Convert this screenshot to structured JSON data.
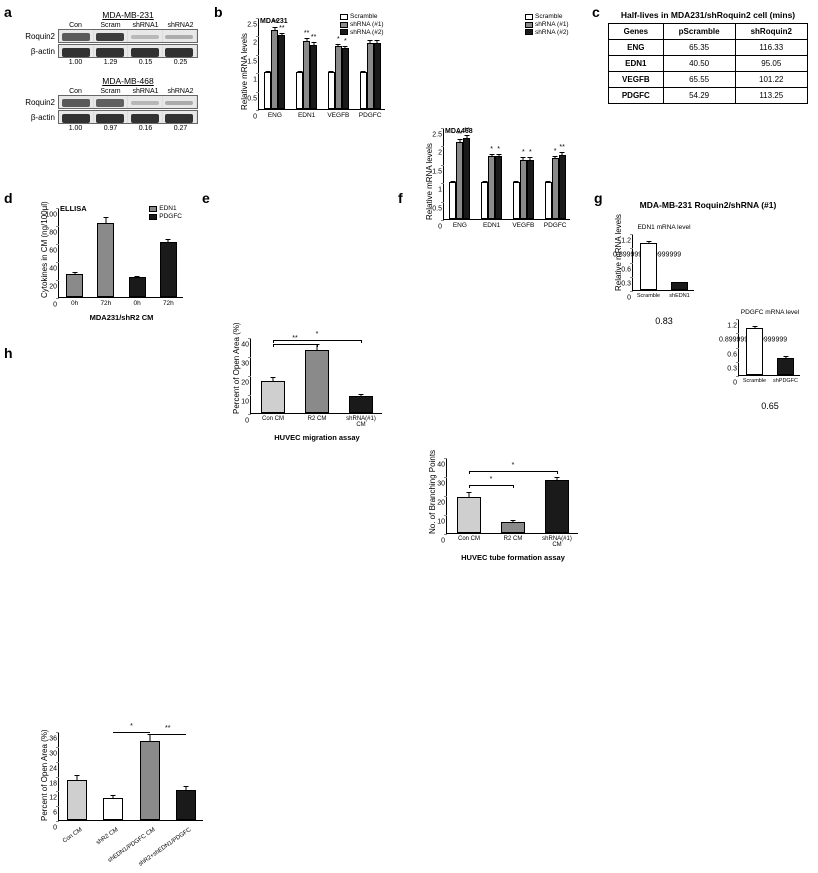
{
  "panel_a": {
    "label": "a",
    "sets": [
      {
        "title": "MDA-MB-231",
        "lanes": [
          "Con",
          "Scram",
          "shRNA1",
          "shRNA2"
        ],
        "rows": [
          {
            "name": "Roquin2",
            "intensities": [
              0.55,
              0.7,
              0.08,
              0.14
            ]
          },
          {
            "name": "β-actin",
            "intensities": [
              0.75,
              0.75,
              0.75,
              0.75
            ]
          }
        ],
        "quant": [
          "1.00",
          "1.29",
          "0.15",
          "0.25"
        ]
      },
      {
        "title": "MDA-MB-468",
        "lanes": [
          "Con",
          "Scram",
          "shRNA1",
          "shRNA2"
        ],
        "rows": [
          {
            "name": "Roquin2",
            "intensities": [
              0.55,
              0.53,
              0.09,
              0.15
            ]
          },
          {
            "name": "β-actin",
            "intensities": [
              0.75,
              0.75,
              0.75,
              0.75
            ]
          }
        ],
        "quant": [
          "1.00",
          "0.97",
          "0.16",
          "0.27"
        ]
      }
    ]
  },
  "panel_b": {
    "label": "b",
    "ylabel": "Relative mRNA levels",
    "ylim": [
      0,
      2.5
    ],
    "ytick_step": 0.5,
    "legend": [
      {
        "label": "Scramble",
        "color": "#ffffff"
      },
      {
        "label": "shRNA (#1)",
        "color": "#8a8a8a"
      },
      {
        "label": "shRNA (#2)",
        "color": "#1a1a1a"
      }
    ],
    "charts": [
      {
        "title": "MDA231",
        "groups": [
          "ENG",
          "EDN1",
          "VEGFB",
          "PDGFC"
        ],
        "series": [
          {
            "color": "#ffffff",
            "values": [
              1.0,
              1.0,
              1.0,
              1.0
            ],
            "errs": [
              0.05,
              0.05,
              0.05,
              0.05
            ]
          },
          {
            "color": "#8a8a8a",
            "values": [
              2.15,
              1.85,
              1.7,
              1.8
            ],
            "errs": [
              0.1,
              0.1,
              0.1,
              0.1
            ],
            "sigs": [
              "**",
              "**",
              "*",
              "**"
            ]
          },
          {
            "color": "#1a1a1a",
            "values": [
              2.0,
              1.75,
              1.65,
              1.8
            ],
            "errs": [
              0.1,
              0.1,
              0.1,
              0.1
            ],
            "sigs": [
              "**",
              "**",
              "*",
              "**"
            ]
          }
        ]
      },
      {
        "title": "MDA468",
        "groups": [
          "ENG",
          "EDN1",
          "VEGFB",
          "PDGFC"
        ],
        "series": [
          {
            "color": "#ffffff",
            "values": [
              1.0,
              1.0,
              1.0,
              1.0
            ],
            "errs": [
              0.05,
              0.05,
              0.05,
              0.05
            ]
          },
          {
            "color": "#8a8a8a",
            "values": [
              2.1,
              1.7,
              1.6,
              1.65
            ],
            "errs": [
              0.1,
              0.1,
              0.1,
              0.1
            ],
            "sigs": [
              "**",
              "*",
              "*",
              "*"
            ]
          },
          {
            "color": "#1a1a1a",
            "values": [
              2.2,
              1.7,
              1.6,
              1.75
            ],
            "errs": [
              0.1,
              0.1,
              0.1,
              0.1
            ],
            "sigs": [
              "**",
              "*",
              "*",
              "**"
            ]
          }
        ]
      }
    ]
  },
  "panel_c": {
    "label": "c",
    "title": "Half-lives in MDA231/shRoquin2 cell (mins)",
    "columns": [
      "Genes",
      "pScramble",
      "shRoquin2"
    ],
    "rows": [
      [
        "ENG",
        "65.35",
        "116.33"
      ],
      [
        "EDN1",
        "40.50",
        "95.05"
      ],
      [
        "VEGFB",
        "65.55",
        "101.22"
      ],
      [
        "PDGFC",
        "54.29",
        "113.25"
      ]
    ]
  },
  "panel_d": {
    "label": "d",
    "title": "ELLISA",
    "ylabel": "Cytokines in CM (ng/100μl)",
    "xlabel": "MDA231/shR2 CM",
    "ylim": [
      0,
      100
    ],
    "ytick_step": 20,
    "legend": [
      {
        "label": "EDN1",
        "color": "#8a8a8a"
      },
      {
        "label": "PDGFC",
        "color": "#1a1a1a"
      }
    ],
    "groups": [
      "0h",
      "72h",
      "0h",
      "72h"
    ],
    "bars": [
      {
        "color": "#8a8a8a",
        "x": 0,
        "val": 26,
        "err": 3
      },
      {
        "color": "#8a8a8a",
        "x": 1,
        "val": 82,
        "err": 8
      },
      {
        "color": "#1a1a1a",
        "x": 2,
        "val": 22,
        "err": 3
      },
      {
        "color": "#1a1a1a",
        "x": 3,
        "val": 61,
        "err": 5
      }
    ]
  },
  "panel_e": {
    "label": "e",
    "ylabel": "Percent of Open Area (%)",
    "xlabel": "HUVEC migration assay",
    "ylim": [
      0,
      40
    ],
    "ytick_step": 10,
    "groups": [
      "Con CM",
      "R2 CM",
      "shRNA(#1) CM"
    ],
    "bars": [
      {
        "color": "#cfcfcf",
        "val": 17,
        "err": 2.5
      },
      {
        "color": "#8a8a8a",
        "val": 33,
        "err": 4
      },
      {
        "color": "#1a1a1a",
        "val": 9,
        "err": 1.5
      }
    ],
    "sigs": [
      {
        "from": 0,
        "to": 2,
        "label": "*",
        "y": 39
      },
      {
        "from": 0,
        "to": 1,
        "label": "**",
        "y": 37
      }
    ]
  },
  "panel_f": {
    "label": "f",
    "ylabel": "No. of Branching Points",
    "xlabel": "HUVEC tube formation assay",
    "ylim": [
      0,
      40
    ],
    "ytick_step": 10,
    "groups": [
      "Con CM",
      "R2 CM",
      "shRNA(#1) CM"
    ],
    "bars": [
      {
        "color": "#cfcfcf",
        "val": 19,
        "err": 3
      },
      {
        "color": "#8a8a8a",
        "val": 6,
        "err": 1.5
      },
      {
        "color": "#1a1a1a",
        "val": 28,
        "err": 2
      }
    ],
    "sigs": [
      {
        "from": 0,
        "to": 2,
        "label": "*",
        "y": 33
      },
      {
        "from": 0,
        "to": 1,
        "label": "*",
        "y": 26
      }
    ]
  },
  "panel_g": {
    "label": "g",
    "title": "MDA-MB-231 Roquin2/shRNA (#1)",
    "ylabel": "Relative mRNA levels",
    "ylim": [
      0,
      1.2
    ],
    "ytick_step": 0.3,
    "charts": [
      {
        "subtitle": "EDN1 mRNA level",
        "groups": [
          "Scramble",
          "shEDN1"
        ],
        "bars": [
          {
            "color": "#ffffff",
            "val": 1.0,
            "err": 0.05
          },
          {
            "color": "#1a1a1a",
            "val": 0.17,
            "err": 0.03
          }
        ],
        "ratio": "0.83"
      },
      {
        "subtitle": "PDGFC mRNA level",
        "groups": [
          "Scramble",
          "shPDGFC"
        ],
        "bars": [
          {
            "color": "#ffffff",
            "val": 1.0,
            "err": 0.05
          },
          {
            "color": "#1a1a1a",
            "val": 0.35,
            "err": 0.07
          }
        ],
        "ratio": "0.65"
      }
    ]
  },
  "panel_h": {
    "label": "h",
    "ylabel": "Percent of Open Area (%)",
    "ylim": [
      0,
      36
    ],
    "ytick_step": 6,
    "groups": [
      "Con CM",
      "shR2 CM",
      "shEDN1/PDGFC CM",
      "shR2+shEDN1/PDGFC"
    ],
    "bars": [
      {
        "color": "#cfcfcf",
        "val": 16,
        "err": 2.5
      },
      {
        "color": "#ffffff",
        "val": 9,
        "err": 1.5
      },
      {
        "color": "#8a8a8a",
        "val": 32,
        "err": 3
      },
      {
        "color": "#1a1a1a",
        "val": 12,
        "err": 2
      }
    ],
    "sigs": [
      {
        "from": 1,
        "to": 2,
        "label": "*",
        "y": 36
      },
      {
        "from": 2,
        "to": 3,
        "label": "**",
        "y": 35
      }
    ]
  }
}
